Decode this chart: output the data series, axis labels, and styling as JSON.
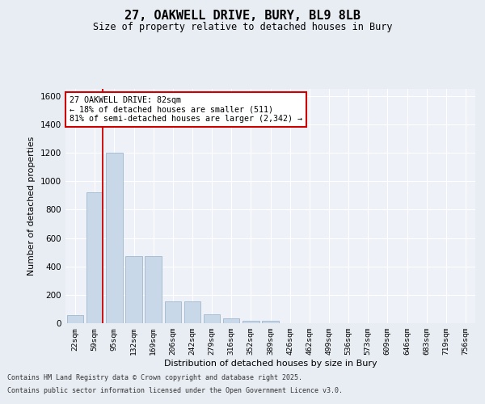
{
  "title_line1": "27, OAKWELL DRIVE, BURY, BL9 8LB",
  "title_line2": "Size of property relative to detached houses in Bury",
  "xlabel": "Distribution of detached houses by size in Bury",
  "ylabel": "Number of detached properties",
  "bin_labels": [
    "22sqm",
    "59sqm",
    "95sqm",
    "132sqm",
    "169sqm",
    "206sqm",
    "242sqm",
    "279sqm",
    "316sqm",
    "352sqm",
    "389sqm",
    "426sqm",
    "462sqm",
    "499sqm",
    "536sqm",
    "573sqm",
    "609sqm",
    "646sqm",
    "683sqm",
    "719sqm",
    "756sqm"
  ],
  "bar_heights": [
    55,
    920,
    1200,
    470,
    470,
    155,
    155,
    60,
    35,
    15,
    15,
    0,
    0,
    0,
    0,
    0,
    0,
    0,
    0,
    0,
    0
  ],
  "bar_color": "#c8d8e8",
  "bar_edge_color": "#a0b8cc",
  "vline_x_idx": 1,
  "vline_color": "#cc0000",
  "annotation_text": "27 OAKWELL DRIVE: 82sqm\n← 18% of detached houses are smaller (511)\n81% of semi-detached houses are larger (2,342) →",
  "annotation_box_color": "#ffffff",
  "annotation_box_edge": "#cc0000",
  "ylim": [
    0,
    1650
  ],
  "yticks": [
    0,
    200,
    400,
    600,
    800,
    1000,
    1200,
    1400,
    1600
  ],
  "bg_color": "#e8edf4",
  "plot_bg_color": "#eef1f8",
  "footer_line1": "Contains HM Land Registry data © Crown copyright and database right 2025.",
  "footer_line2": "Contains public sector information licensed under the Open Government Licence v3.0."
}
